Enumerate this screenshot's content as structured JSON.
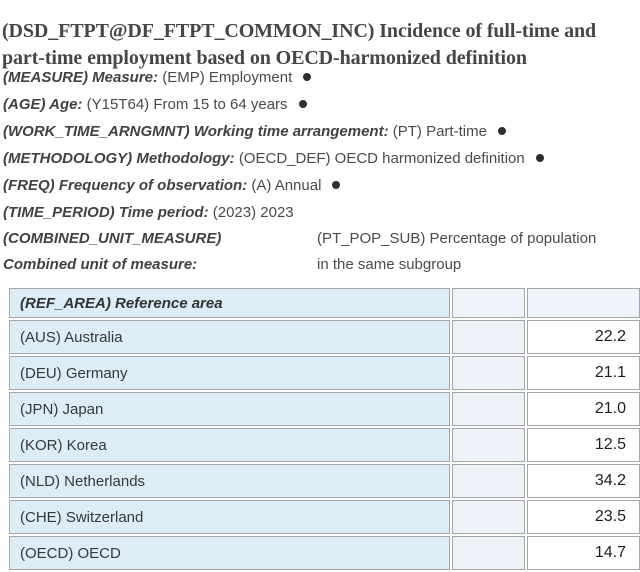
{
  "page": {
    "title": "(DSD_FTPT@DF_FTPT_COMMON_INC) Incidence of full-time and part-time employment based on OECD-harmonized definition"
  },
  "filters": [
    {
      "label": "(MEASURE) Measure:",
      "value": "(EMP) Employment",
      "selected_marker": true
    },
    {
      "label": "(AGE) Age:",
      "value": "(Y15T64) From 15 to 64 years",
      "selected_marker": true
    },
    {
      "label": "(WORK_TIME_ARNGMNT) Working time arrangement:",
      "value": "(PT) Part-time",
      "selected_marker": true
    },
    {
      "label": "(METHODOLOGY) Methodology:",
      "value": "(OECD_DEF) OECD harmonized definition",
      "selected_marker": true
    },
    {
      "label": "(FREQ) Frequency of observation:",
      "value": "(A) Annual",
      "selected_marker": true
    },
    {
      "label": "(TIME_PERIOD) Time period:",
      "value": "(2023) 2023",
      "selected_marker": false
    }
  ],
  "combined_unit": {
    "label_line1": "(COMBINED_UNIT_MEASURE)",
    "label_line2": "Combined unit of measure:",
    "value_line1": "(PT_POP_SUB) Percentage of population",
    "value_line2": "in the same subgroup"
  },
  "table": {
    "header": "(REF_AREA) Reference area",
    "rows": [
      {
        "area": "(AUS) Australia",
        "value": "22.2"
      },
      {
        "area": "(DEU) Germany",
        "value": "21.1"
      },
      {
        "area": "(JPN) Japan",
        "value": "21.0"
      },
      {
        "area": "(KOR) Korea",
        "value": "12.5"
      },
      {
        "area": "(NLD) Netherlands",
        "value": "34.2"
      },
      {
        "area": "(CHE) Switzerland",
        "value": "23.5"
      },
      {
        "area": "(OECD) OECD",
        "value": "14.7"
      }
    ]
  },
  "colors": {
    "row_header_bg": "#dcedf7",
    "secondary_cell_bg": "#edf2f9",
    "table_border": "#a6a6a6",
    "title_text": "#464646",
    "body_text": "#4a4a4a"
  }
}
